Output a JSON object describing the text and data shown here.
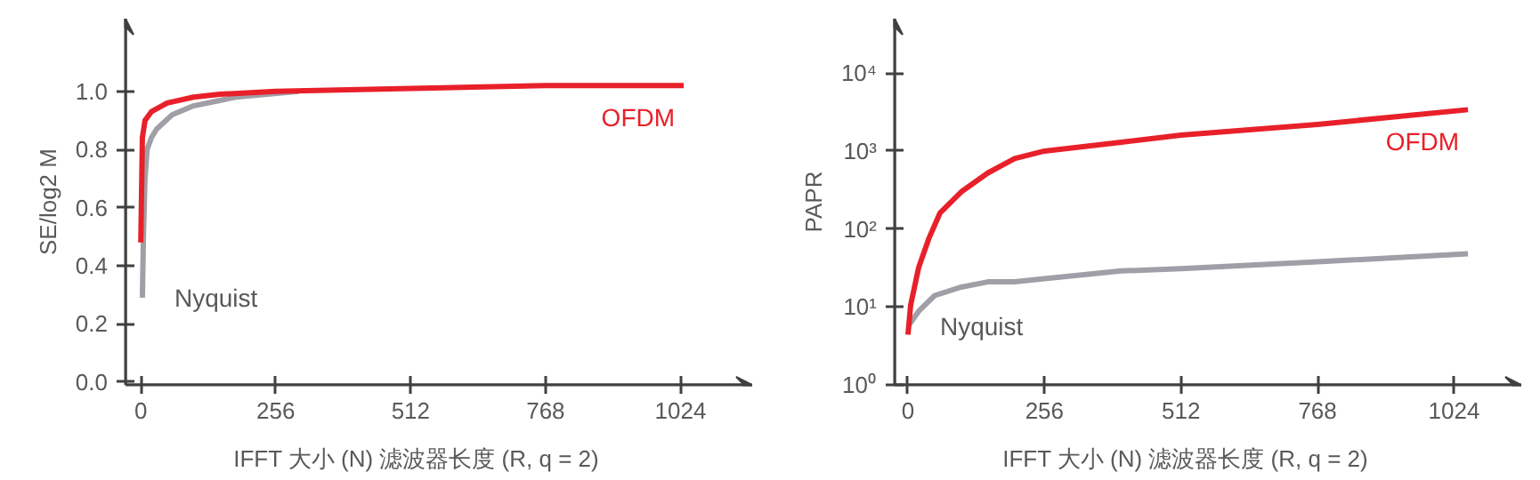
{
  "chart_data": [
    {
      "type": "line",
      "xlabel": "IFFT 大小 (N)        滤波器长度 (R, q = 2)",
      "ylabel": "SE/log2 M",
      "xlim": [
        -29,
        1160
      ],
      "ylim": [
        -0.01,
        1.25
      ],
      "xticks": [
        0,
        256,
        512,
        768,
        1024
      ],
      "yticks": [
        {
          "value": 0,
          "label": "0.0"
        },
        0.2,
        0.4,
        0.6,
        0.8,
        {
          "value": 1,
          "label": "1.0"
        }
      ],
      "grid": false,
      "series": [
        {
          "name": "OFDM",
          "color": "#e8202a",
          "x": [
            0,
            1,
            3,
            8,
            20,
            50,
            100,
            150,
            256,
            512,
            768,
            1030
          ],
          "values": [
            0.48,
            0.6,
            0.84,
            0.9,
            0.93,
            0.96,
            0.98,
            0.99,
            1.0,
            1.01,
            1.02,
            1.02
          ]
        },
        {
          "name": "Nyquist",
          "color": "#a09ea6",
          "x": [
            3,
            5,
            8,
            12,
            20,
            30,
            60,
            100,
            180,
            300
          ],
          "values": [
            0.29,
            0.5,
            0.7,
            0.8,
            0.84,
            0.87,
            0.92,
            0.95,
            0.98,
            1.0
          ]
        }
      ]
    },
    {
      "type": "line",
      "xlabel": "IFFT 大小 (N)        滤波器长度 (R, q = 2)",
      "ylabel": "PAPR",
      "log": "y",
      "xlim": [
        -25,
        1150
      ],
      "ylim": [
        1,
        50000
      ],
      "xticks": [
        0,
        256,
        512,
        768,
        1024
      ],
      "yticks": [
        {
          "value": 1,
          "label": "10⁰"
        },
        {
          "value": 10,
          "label": "10¹"
        },
        {
          "value": 100,
          "label": "10²"
        },
        {
          "value": 1000,
          "label": "10³"
        },
        {
          "value": 10000,
          "label": "10⁴"
        }
      ],
      "grid": false,
      "series": [
        {
          "name": "OFDM",
          "color": "#e8202a",
          "x": [
            0,
            5,
            20,
            40,
            60,
            100,
            150,
            200,
            256,
            400,
            512,
            768,
            1050
          ],
          "values": [
            4.4,
            10.5,
            32,
            78,
            160,
            300,
            525,
            800,
            1000,
            1300,
            1600,
            2200,
            3400
          ]
        },
        {
          "name": "Nyquist",
          "color": "#a09ea6",
          "x": [
            0,
            20,
            50,
            100,
            150,
            200,
            256,
            400,
            512,
            768,
            1050
          ],
          "values": [
            5.6,
            8.8,
            14,
            18,
            21,
            21,
            23,
            29,
            31,
            38,
            48
          ]
        }
      ]
    }
  ]
}
